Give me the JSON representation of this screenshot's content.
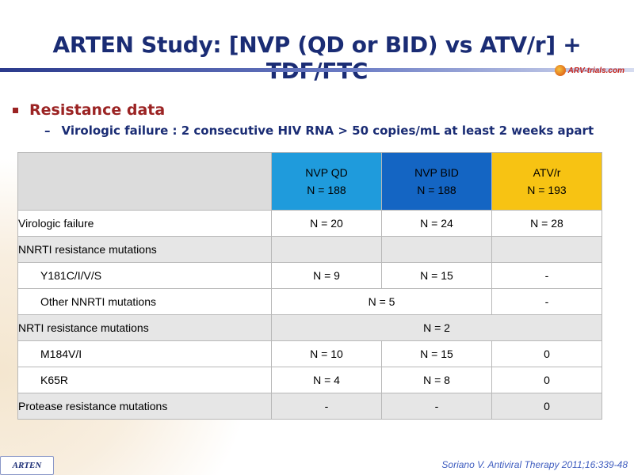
{
  "title": "ARTEN Study: [NVP (QD or BID) vs ATV/r] + TDF/FTC",
  "logo": {
    "text": "ARV-trials.com"
  },
  "bullet": "Resistance data",
  "subbullet": {
    "dash": "–",
    "text": "Virologic failure : 2 consecutive HIV RNA > 50 copies/mL at least 2 weeks apart"
  },
  "table": {
    "headers": [
      {
        "line1": "NVP QD",
        "line2": "N = 188",
        "color": "#1f9bdc"
      },
      {
        "line1": "NVP BID",
        "line2": "N = 188",
        "color": "#1465c3"
      },
      {
        "line1": "ATV/r",
        "line2": "N = 193",
        "color": "#f7c313"
      }
    ],
    "rows": [
      {
        "label": "Virologic failure",
        "qd": "N = 20",
        "bid": "N = 24",
        "atv": "N = 28"
      },
      {
        "label": "NNRTI resistance mutations"
      },
      {
        "label": "Y181C/I/V/S",
        "qd": "N = 9",
        "bid": "N = 15",
        "atv": "-"
      },
      {
        "label": "Other NNRTI mutations",
        "nvp_combined": "N = 5",
        "atv": "-"
      },
      {
        "label": "NRTI resistance mutations",
        "combined": "N = 2"
      },
      {
        "label": "M184V/I",
        "qd": "N = 10",
        "bid": "N = 15",
        "atv": "0"
      },
      {
        "label": "K65R",
        "qd": "N = 4",
        "bid": "N = 8",
        "atv": "0"
      },
      {
        "label": "Protease resistance mutations",
        "qd": "-",
        "bid": "-",
        "atv": "0"
      }
    ]
  },
  "footer": {
    "tag": "ARTEN",
    "citation": "Soriano V. Antiviral Therapy 2011;16:339-48"
  }
}
